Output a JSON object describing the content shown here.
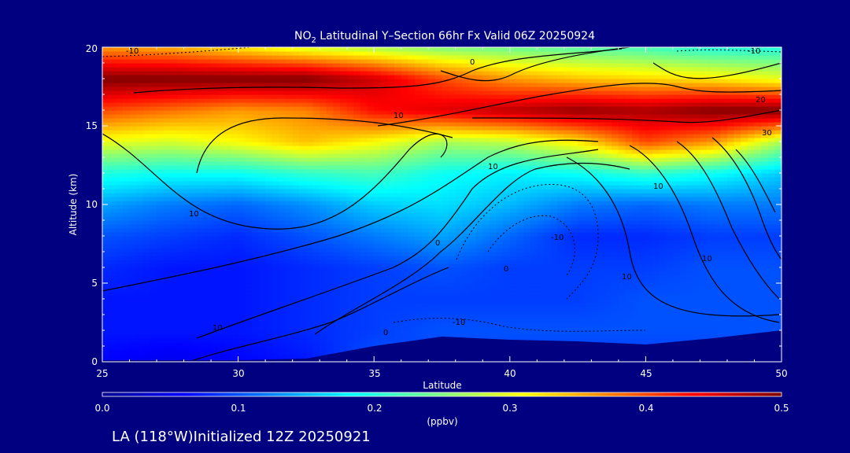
{
  "title": {
    "prefix": "NO",
    "subscript": "2",
    "rest": " Latitudinal Y–Section 66hr  Fx Valid 06Z 20250924"
  },
  "footer": "LA (118°W)Initialized 12Z 20250921",
  "colors": {
    "background": "#000080",
    "text": "#ffffff",
    "contour": "#000000"
  },
  "chart_data": {
    "type": "heatmap",
    "xlabel": "Latitude",
    "ylabel": "Altitude (km)",
    "xlim": [
      25,
      50
    ],
    "ylim": [
      0,
      20
    ],
    "x_ticks": [
      25,
      30,
      35,
      40,
      45,
      50
    ],
    "y_ticks": [
      0,
      5,
      10,
      15,
      20
    ],
    "colorbar": {
      "label": "(ppbv)",
      "range": [
        0.0,
        0.5
      ],
      "ticks": [
        "0.0",
        "0.1",
        "0.2",
        "0.3",
        "0.4",
        "0.5"
      ]
    },
    "colormap": "jet",
    "lat": [
      25,
      27.5,
      30,
      32.5,
      35,
      37.5,
      40,
      42.5,
      45,
      47.5,
      50
    ],
    "alt": [
      0,
      2,
      4,
      6,
      8,
      10,
      12,
      14,
      16,
      18,
      20
    ],
    "values": [
      [
        0.06,
        0.05,
        0.06,
        0.07,
        0.1,
        0.09,
        0.09,
        0.09,
        0.09,
        0.09,
        0.1
      ],
      [
        0.07,
        0.07,
        0.07,
        0.08,
        0.09,
        0.1,
        0.1,
        0.1,
        0.1,
        0.1,
        0.1
      ],
      [
        0.07,
        0.07,
        0.07,
        0.08,
        0.09,
        0.09,
        0.09,
        0.09,
        0.1,
        0.1,
        0.1
      ],
      [
        0.08,
        0.07,
        0.07,
        0.08,
        0.09,
        0.1,
        0.09,
        0.09,
        0.09,
        0.1,
        0.1
      ],
      [
        0.1,
        0.09,
        0.08,
        0.1,
        0.12,
        0.14,
        0.11,
        0.08,
        0.08,
        0.09,
        0.09
      ],
      [
        0.14,
        0.12,
        0.11,
        0.13,
        0.16,
        0.17,
        0.15,
        0.12,
        0.11,
        0.12,
        0.12
      ],
      [
        0.2,
        0.19,
        0.19,
        0.21,
        0.22,
        0.19,
        0.18,
        0.19,
        0.21,
        0.19,
        0.16
      ],
      [
        0.3,
        0.29,
        0.31,
        0.34,
        0.31,
        0.27,
        0.28,
        0.32,
        0.4,
        0.36,
        0.27
      ],
      [
        0.4,
        0.38,
        0.36,
        0.37,
        0.43,
        0.45,
        0.47,
        0.49,
        0.48,
        0.5,
        0.5
      ],
      [
        0.5,
        0.5,
        0.5,
        0.5,
        0.46,
        0.4,
        0.36,
        0.34,
        0.33,
        0.32,
        0.3
      ],
      [
        0.36,
        0.35,
        0.32,
        0.29,
        0.27,
        0.25,
        0.24,
        0.23,
        0.22,
        0.2,
        0.2
      ]
    ],
    "terrain_altitude": [
      0.1,
      0.1,
      0.1,
      0.2,
      1.0,
      1.6,
      1.4,
      1.3,
      1.1,
      1.5,
      2.0
    ],
    "contour_labels": [
      "-10",
      "0",
      "10",
      "10",
      "-10",
      "0",
      "10",
      "20",
      "30",
      "10",
      "-10",
      "-10",
      "0",
      "10",
      "0",
      "10",
      "10"
    ]
  }
}
